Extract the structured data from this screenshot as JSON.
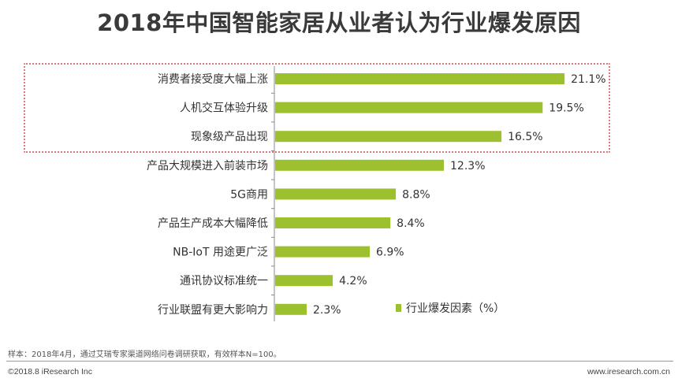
{
  "chart_data": {
    "type": "bar",
    "orientation": "horizontal",
    "title": "2018年中国智能家居从业者认为行业爆发原因",
    "categories": [
      "消费者接受度大幅上涨",
      "人机交互体验升级",
      "现象级产品出现",
      "产品大规模进入前装市场",
      "5G商用",
      "产品生产成本大幅降低",
      "NB-IoT 用途更广泛",
      "通讯协议标准统一",
      "行业联盟有更大影响力"
    ],
    "values": [
      21.1,
      19.5,
      16.5,
      12.3,
      8.8,
      8.4,
      6.9,
      4.2,
      2.3
    ],
    "value_labels": [
      "21.1%",
      "19.5%",
      "16.5%",
      "12.3%",
      "8.8%",
      "8.4%",
      "6.9%",
      "4.2%",
      "2.3%"
    ],
    "series": [
      {
        "name": "行业爆发因素（%）",
        "color": "#9dc12e"
      }
    ],
    "highlight": {
      "categories_highlighted": 3,
      "color": "#e07a7a"
    },
    "legend_position": "bottom-right",
    "grid": false
  },
  "footer": {
    "source": "样本：2018年4月，通过艾瑞专家渠道网络问卷调研获取，有效样本N=100。",
    "copyright": "©2018.8 iResearch Inc",
    "website": "www.iresearch.com.cn"
  }
}
